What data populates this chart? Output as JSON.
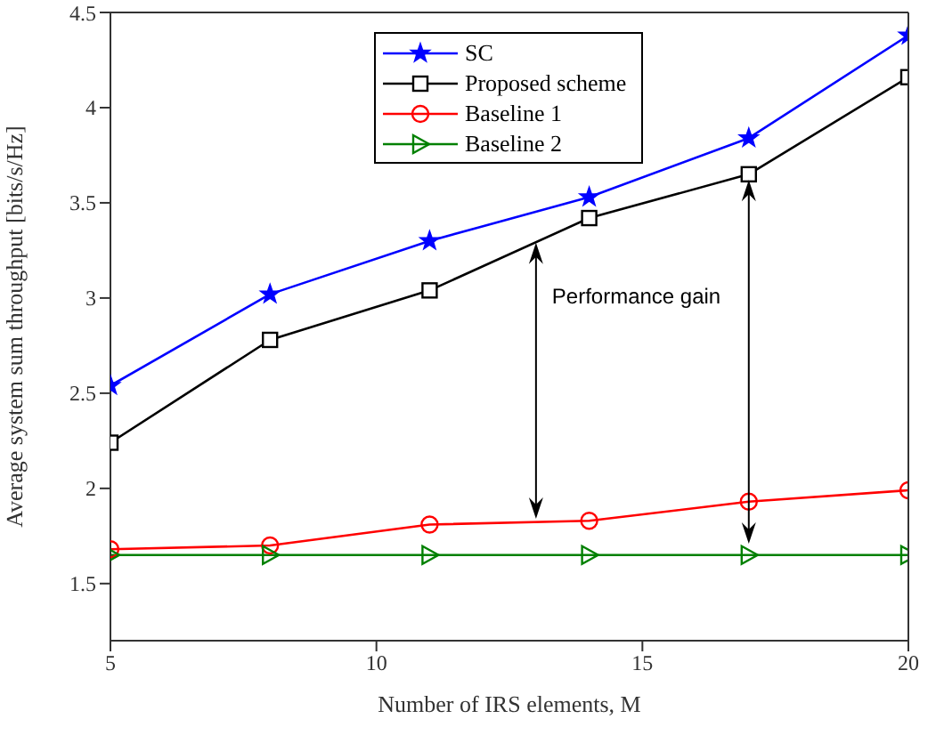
{
  "chart_data": {
    "type": "line",
    "xlabel": "Number of IRS elements, M",
    "ylabel": "Average system sum throughput [bits/s/Hz]",
    "x": [
      5,
      8,
      11,
      14,
      17,
      20
    ],
    "series": [
      {
        "name": "SC",
        "color": "#0000ff",
        "marker": "star",
        "values": [
          2.54,
          3.02,
          3.3,
          3.53,
          3.84,
          4.38
        ]
      },
      {
        "name": "Proposed scheme",
        "color": "#000000",
        "marker": "square",
        "values": [
          2.24,
          2.78,
          3.04,
          3.42,
          3.65,
          4.16
        ]
      },
      {
        "name": "Baseline 1",
        "color": "#ff0000",
        "marker": "circle",
        "values": [
          1.68,
          1.7,
          1.81,
          1.83,
          1.93,
          1.99
        ]
      },
      {
        "name": "Baseline 2",
        "color": "#008000",
        "marker": "triangle",
        "values": [
          1.65,
          1.65,
          1.65,
          1.65,
          1.65,
          1.65
        ]
      }
    ],
    "xlim": [
      5,
      20
    ],
    "xticks": [
      5,
      10,
      15,
      20
    ],
    "ylim": [
      1.2,
      4.5
    ],
    "yticks": [
      1.5,
      2,
      2.5,
      3,
      3.5,
      4,
      4.5
    ],
    "grid": false,
    "legend": "top",
    "line_style": "solid",
    "annotations": [
      "Performance gain"
    ]
  }
}
